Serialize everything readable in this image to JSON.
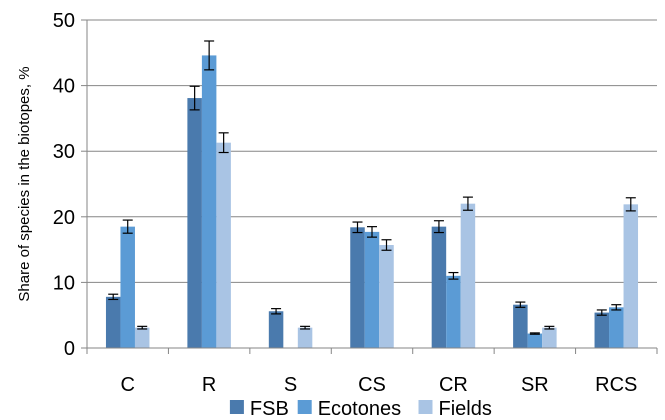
{
  "chart_data": {
    "type": "bar",
    "title": "",
    "xlabel": "",
    "ylabel": "Share of species in the biotopes, %",
    "ylim": [
      0,
      50
    ],
    "yticks": [
      0,
      10,
      20,
      30,
      40,
      50
    ],
    "categories": [
      "C",
      "R",
      "S",
      "CS",
      "CR",
      "SR",
      "RCS"
    ],
    "series": [
      {
        "name": "FSB",
        "color": "#4a7aad",
        "values": [
          7.8,
          38.1,
          5.6,
          18.4,
          18.5,
          6.6,
          5.4
        ],
        "errors": [
          0.4,
          1.8,
          0.4,
          0.8,
          0.9,
          0.4,
          0.4
        ]
      },
      {
        "name": "Ecotones",
        "color": "#5b9bd5",
        "values": [
          18.5,
          44.6,
          0,
          17.7,
          11.0,
          2.2,
          6.2
        ],
        "errors": [
          1.0,
          2.2,
          0,
          0.8,
          0.5,
          0.1,
          0.4
        ]
      },
      {
        "name": "Fields",
        "color": "#a9c4e4",
        "values": [
          3.1,
          31.3,
          3.1,
          15.7,
          22.0,
          3.1,
          21.9
        ],
        "errors": [
          0.2,
          1.5,
          0.2,
          0.8,
          1.0,
          0.2,
          1.0
        ]
      }
    ],
    "grid": {
      "horizontal": true,
      "vertical": false
    },
    "legend_position": "bottom"
  }
}
